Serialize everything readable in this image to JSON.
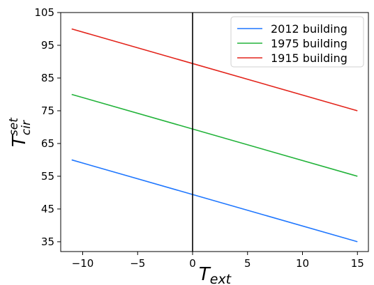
{
  "chart_data": {
    "type": "line",
    "xlabel": {
      "base": "T",
      "sub": "ext"
    },
    "ylabel": {
      "base": "T",
      "sup": "set",
      "sub": "cir"
    },
    "xlim": [
      -12,
      16
    ],
    "ylim": [
      32,
      105
    ],
    "xticks": [
      -10,
      -5,
      0,
      5,
      10,
      15
    ],
    "xtick_labels": [
      "−10",
      "−5",
      "0",
      "5",
      "10",
      "15"
    ],
    "yticks": [
      35,
      45,
      55,
      65,
      75,
      85,
      95,
      105
    ],
    "ytick_labels": [
      "35",
      "45",
      "55",
      "65",
      "75",
      "85",
      "95",
      "105"
    ],
    "vline": {
      "x": 0,
      "color": "#000000"
    },
    "grid": false,
    "legend_position": "top-right",
    "series": [
      {
        "name": "2012 building",
        "color": "#1f77ff",
        "x": [
          -11,
          15
        ],
        "y": [
          60,
          35
        ]
      },
      {
        "name": "1975 building",
        "color": "#22b33a",
        "x": [
          -11,
          15
        ],
        "y": [
          80,
          55
        ]
      },
      {
        "name": "1915 building",
        "color": "#e3241b",
        "x": [
          -11,
          15
        ],
        "y": [
          100,
          75
        ]
      }
    ]
  }
}
